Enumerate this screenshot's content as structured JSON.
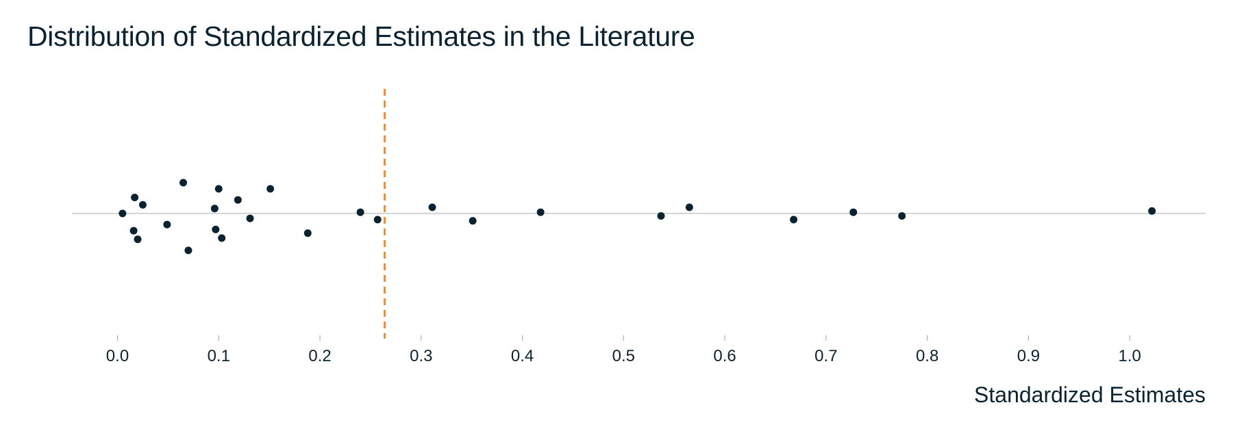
{
  "chart_data": {
    "type": "scatter",
    "title": "Distribution of Standardized Estimates in the Literature",
    "xlabel": "Standardized Estimates",
    "ylabel": "",
    "xlim": [
      -0.045,
      1.075
    ],
    "ylim": [
      -1,
      1
    ],
    "xticks": [
      0.0,
      0.1,
      0.2,
      0.3,
      0.4,
      0.5,
      0.6,
      0.7,
      0.8,
      0.9,
      1.0
    ],
    "xtick_labels": [
      "0.0",
      "0.1",
      "0.2",
      "0.3",
      "0.4",
      "0.5",
      "0.6",
      "0.7",
      "0.8",
      "0.9",
      "1.0"
    ],
    "reference_line": {
      "x": 0.264,
      "style": "dashed",
      "color": "#f28a2e"
    },
    "baseline_y": 0,
    "grid": false,
    "point_color": "#0b2330",
    "points": [
      {
        "x": 0.005,
        "y": 0.0
      },
      {
        "x": 0.016,
        "y": -0.14
      },
      {
        "x": 0.017,
        "y": 0.13
      },
      {
        "x": 0.02,
        "y": -0.21
      },
      {
        "x": 0.025,
        "y": 0.07
      },
      {
        "x": 0.049,
        "y": -0.09
      },
      {
        "x": 0.065,
        "y": 0.25
      },
      {
        "x": 0.07,
        "y": -0.3
      },
      {
        "x": 0.096,
        "y": 0.04
      },
      {
        "x": 0.097,
        "y": -0.13
      },
      {
        "x": 0.1,
        "y": 0.2
      },
      {
        "x": 0.103,
        "y": -0.2
      },
      {
        "x": 0.119,
        "y": 0.11
      },
      {
        "x": 0.131,
        "y": -0.04
      },
      {
        "x": 0.151,
        "y": 0.2
      },
      {
        "x": 0.188,
        "y": -0.16
      },
      {
        "x": 0.24,
        "y": 0.01
      },
      {
        "x": 0.257,
        "y": -0.05
      },
      {
        "x": 0.311,
        "y": 0.05
      },
      {
        "x": 0.351,
        "y": -0.06
      },
      {
        "x": 0.418,
        "y": 0.01
      },
      {
        "x": 0.537,
        "y": -0.02
      },
      {
        "x": 0.565,
        "y": 0.05
      },
      {
        "x": 0.668,
        "y": -0.05
      },
      {
        "x": 0.727,
        "y": 0.01
      },
      {
        "x": 0.775,
        "y": -0.02
      },
      {
        "x": 1.022,
        "y": 0.02
      }
    ]
  }
}
